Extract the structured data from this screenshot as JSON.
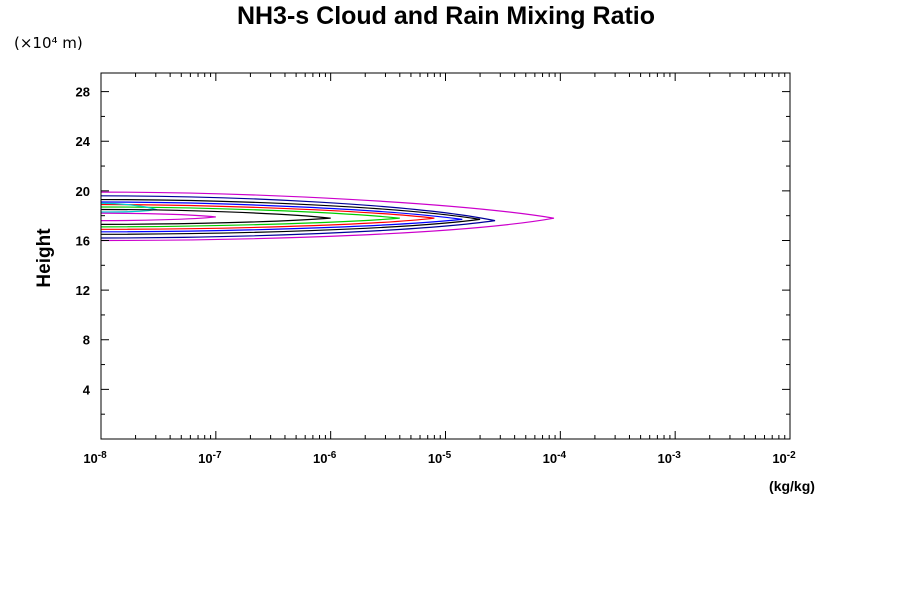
{
  "chart_data": {
    "type": "contour",
    "title": "NH3-s Cloud and Rain Mixing Ratio",
    "y_unit_label": "(×10⁴ m)",
    "xlabel": "(kg/kg)",
    "ylabel": "Height",
    "x_scale": "log",
    "xlim": [
      1e-08,
      0.01
    ],
    "ylim": [
      0,
      29.5
    ],
    "x_ticks": [
      {
        "value": 1e-08,
        "base": "10",
        "exp": "-8"
      },
      {
        "value": 1e-07,
        "base": "10",
        "exp": "-7"
      },
      {
        "value": 1e-06,
        "base": "10",
        "exp": "-6"
      },
      {
        "value": 1e-05,
        "base": "10",
        "exp": "-5"
      },
      {
        "value": 0.0001,
        "base": "10",
        "exp": "-4"
      },
      {
        "value": 0.001,
        "base": "10",
        "exp": "-3"
      },
      {
        "value": 0.01,
        "base": "10",
        "exp": "-2"
      }
    ],
    "y_ticks": [
      "4",
      "8",
      "12",
      "16",
      "20",
      "24",
      "28"
    ],
    "y_tick_values": [
      4,
      8,
      12,
      16,
      20,
      24,
      28
    ],
    "grid": false,
    "contours": [
      {
        "color": "#cc00cc",
        "tip": [
          8.8e-05,
          17.8
        ],
        "left_bottom": 16.0,
        "left_top": 19.9,
        "top_ctrl": 19.0,
        "bot_ctrl": 16.5
      },
      {
        "color": "#000099",
        "tip": [
          2.7e-05,
          17.6
        ],
        "left_bottom": 16.2,
        "left_top": 19.6,
        "top_ctrl": 18.9,
        "bot_ctrl": 16.7
      },
      {
        "color": "#000000",
        "tip": [
          2e-05,
          17.7
        ],
        "left_bottom": 16.5,
        "left_top": 19.3,
        "top_ctrl": 18.7,
        "bot_ctrl": 16.9
      },
      {
        "color": "#0000ff",
        "tip": [
          1.4e-05,
          17.7
        ],
        "left_bottom": 16.7,
        "left_top": 19.1,
        "top_ctrl": 18.5,
        "bot_ctrl": 17.1
      },
      {
        "color": "#ff0000",
        "tip": [
          8e-06,
          17.8
        ],
        "left_bottom": 16.9,
        "left_top": 18.9,
        "top_ctrl": 18.4,
        "bot_ctrl": 17.2
      },
      {
        "color": "#00cc00",
        "tip": [
          4e-06,
          17.8
        ],
        "left_bottom": 17.1,
        "left_top": 18.7,
        "top_ctrl": 18.3,
        "bot_ctrl": 17.4
      },
      {
        "color": "#00cccc",
        "tip": [
          3e-08,
          18.5
        ],
        "left_bottom": 18.3,
        "left_top": 19.0,
        "top_ctrl": 18.8,
        "bot_ctrl": 18.3
      },
      {
        "color": "#000000",
        "tip": [
          1e-06,
          17.8
        ],
        "left_bottom": 17.3,
        "left_top": 18.5,
        "top_ctrl": 18.2,
        "bot_ctrl": 17.5
      },
      {
        "color": "#cc00cc",
        "tip": [
          1e-07,
          17.9
        ],
        "left_bottom": 17.6,
        "left_top": 18.2,
        "top_ctrl": 18.1,
        "bot_ctrl": 17.7
      }
    ]
  }
}
